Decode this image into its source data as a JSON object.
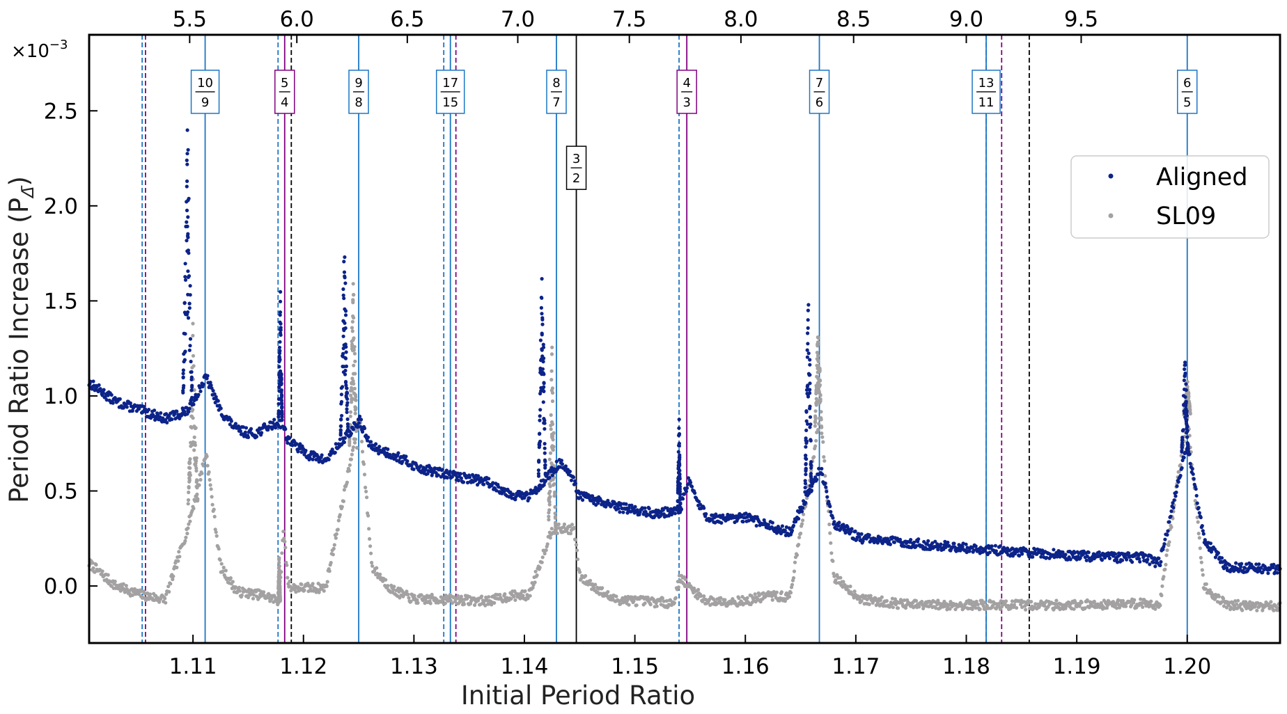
{
  "chart_data": {
    "type": "scatter",
    "xlabel": "Initial Period Ratio",
    "ylabel": "Period Ratio Increase (P",
    "ylabel_sub": "Δ̄",
    "ylabel_close": ")",
    "y_multiplier": "×10",
    "y_multiplier_exp": "−3",
    "xlim": [
      1.1006,
      1.2084
    ],
    "ylim": [
      -0.3,
      2.9
    ],
    "x_ticks": [
      "1.11",
      "1.12",
      "1.13",
      "1.14",
      "1.15",
      "1.16",
      "1.17",
      "1.18",
      "1.19",
      "1.20"
    ],
    "x_tick_values": [
      1.11,
      1.12,
      1.13,
      1.14,
      1.15,
      1.16,
      1.17,
      1.18,
      1.19,
      1.2
    ],
    "y_ticks": [
      "0.0",
      "0.5",
      "1.0",
      "1.5",
      "2.0",
      "2.5"
    ],
    "y_tick_values": [
      0.0,
      0.5,
      1.0,
      1.5,
      2.0,
      2.5
    ],
    "top_axis": {
      "ticks": [
        "5.5",
        "6.0",
        "6.5",
        "7.0",
        "7.5",
        "8.0",
        "8.5",
        "9.0",
        "9.5"
      ],
      "positions_initial_ratio": [
        1.1097,
        1.1194,
        1.1294,
        1.1394,
        1.1495,
        1.1596,
        1.1698,
        1.18,
        1.1904
      ]
    },
    "legend": {
      "position": "upper-right",
      "entries": [
        "Aligned",
        "SL09"
      ]
    },
    "grid": false,
    "colors": {
      "aligned": "#0c2389",
      "sl09": "#a3a1a1",
      "blue_line": "#1b75c4",
      "purple_line": "#800080",
      "black_line": "#000000"
    },
    "resonances": [
      {
        "num": "10",
        "den": "9",
        "value": 1.1111,
        "color": "#1b75c4",
        "label_y": 2.6
      },
      {
        "num": "5",
        "den": "4",
        "value": 1.1183,
        "color": "#800080",
        "label_y": 2.6
      },
      {
        "num": "9",
        "den": "8",
        "value": 1.125,
        "color": "#1b75c4",
        "label_y": 2.6
      },
      {
        "num": "17",
        "den": "15",
        "value": 1.1333,
        "color": "#1b75c4",
        "label_y": 2.6
      },
      {
        "num": "8",
        "den": "7",
        "value": 1.1429,
        "color": "#1b75c4",
        "label_y": 2.6
      },
      {
        "num": "3",
        "den": "2",
        "value": 1.1447,
        "color": "#000000",
        "label_y": 2.2
      },
      {
        "num": "4",
        "den": "3",
        "value": 1.1547,
        "color": "#800080",
        "label_y": 2.6
      },
      {
        "num": "7",
        "den": "6",
        "value": 1.1667,
        "color": "#1b75c4",
        "label_y": 2.6
      },
      {
        "num": "13",
        "den": "11",
        "value": 1.1818,
        "color": "#1b75c4",
        "label_y": 2.6
      },
      {
        "num": "6",
        "den": "5",
        "value": 1.2,
        "color": "#1b75c4",
        "label_y": 2.6
      }
    ],
    "dashed_lines": [
      {
        "value": 1.1054,
        "color": "#1b75c4"
      },
      {
        "value": 1.1057,
        "color": "#800080"
      },
      {
        "value": 1.1177,
        "color": "#1b75c4"
      },
      {
        "value": 1.1189,
        "color": "#000000"
      },
      {
        "value": 1.1327,
        "color": "#1b75c4"
      },
      {
        "value": 1.1338,
        "color": "#800080"
      },
      {
        "value": 1.154,
        "color": "#1b75c4"
      },
      {
        "value": 1.1818,
        "color": "#1b75c4"
      },
      {
        "value": 1.1832,
        "color": "#800080"
      },
      {
        "value": 1.1857,
        "color": "#000000"
      }
    ],
    "series": [
      {
        "name": "Aligned",
        "baseline": [
          [
            1.1006,
            1.07
          ],
          [
            1.103,
            0.97
          ],
          [
            1.1055,
            0.92
          ],
          [
            1.1075,
            0.88
          ],
          [
            1.1095,
            0.92
          ],
          [
            1.1112,
            1.1
          ],
          [
            1.1125,
            0.92
          ],
          [
            1.114,
            0.82
          ],
          [
            1.1155,
            0.8
          ],
          [
            1.1172,
            0.85
          ],
          [
            1.1181,
            0.86
          ],
          [
            1.1185,
            0.78
          ],
          [
            1.119,
            0.75
          ],
          [
            1.1205,
            0.69
          ],
          [
            1.122,
            0.66
          ],
          [
            1.1251,
            0.87
          ],
          [
            1.126,
            0.74
          ],
          [
            1.1285,
            0.68
          ],
          [
            1.1305,
            0.62
          ],
          [
            1.1335,
            0.58
          ],
          [
            1.1365,
            0.55
          ],
          [
            1.139,
            0.48
          ],
          [
            1.1404,
            0.47
          ],
          [
            1.1425,
            0.6
          ],
          [
            1.1432,
            0.65
          ],
          [
            1.1445,
            0.55
          ],
          [
            1.1448,
            0.48
          ],
          [
            1.148,
            0.42
          ],
          [
            1.152,
            0.38
          ],
          [
            1.1541,
            0.4
          ],
          [
            1.1548,
            0.55
          ],
          [
            1.1565,
            0.36
          ],
          [
            1.1585,
            0.35
          ],
          [
            1.16,
            0.36
          ],
          [
            1.162,
            0.32
          ],
          [
            1.164,
            0.28
          ],
          [
            1.1668,
            0.62
          ],
          [
            1.168,
            0.33
          ],
          [
            1.1705,
            0.25
          ],
          [
            1.176,
            0.22
          ],
          [
            1.182,
            0.19
          ],
          [
            1.19,
            0.16
          ],
          [
            1.1935,
            0.15
          ],
          [
            1.196,
            0.15
          ],
          [
            1.1975,
            0.12
          ],
          [
            1.2,
            0.75
          ],
          [
            1.2015,
            0.25
          ],
          [
            1.2035,
            0.1
          ],
          [
            1.2084,
            0.09
          ]
        ],
        "peaks": [
          [
            1.1095,
            2.5,
            0.00045
          ],
          [
            1.1179,
            1.6,
            0.00017
          ],
          [
            1.1237,
            1.9,
            0.00035
          ],
          [
            1.1416,
            1.8,
            0.00033
          ],
          [
            1.154,
            1.0,
            0.00013
          ],
          [
            1.1657,
            1.7,
            0.0003
          ],
          [
            1.1998,
            1.25,
            0.0003
          ]
        ]
      },
      {
        "name": "SL09",
        "baseline": [
          [
            1.1006,
            0.12
          ],
          [
            1.103,
            0.0
          ],
          [
            1.1055,
            -0.05
          ],
          [
            1.1075,
            -0.07
          ],
          [
            1.1095,
            0.3
          ],
          [
            1.1112,
            0.7
          ],
          [
            1.1125,
            0.1
          ],
          [
            1.114,
            -0.03
          ],
          [
            1.1165,
            -0.05
          ],
          [
            1.1178,
            -0.08
          ],
          [
            1.1182,
            0.3
          ],
          [
            1.1186,
            0.02
          ],
          [
            1.119,
            -0.01
          ],
          [
            1.1205,
            -0.01
          ],
          [
            1.122,
            -0.01
          ],
          [
            1.1251,
            0.9
          ],
          [
            1.1262,
            0.1
          ],
          [
            1.128,
            -0.02
          ],
          [
            1.13,
            -0.07
          ],
          [
            1.1335,
            -0.07
          ],
          [
            1.1365,
            -0.08
          ],
          [
            1.139,
            -0.05
          ],
          [
            1.1404,
            -0.05
          ],
          [
            1.1425,
            0.3
          ],
          [
            1.1445,
            0.3
          ],
          [
            1.145,
            0.05
          ],
          [
            1.148,
            -0.07
          ],
          [
            1.1535,
            -0.09
          ],
          [
            1.1541,
            0.05
          ],
          [
            1.1548,
            0.0
          ],
          [
            1.1565,
            -0.08
          ],
          [
            1.16,
            -0.08
          ],
          [
            1.162,
            -0.05
          ],
          [
            1.164,
            -0.06
          ],
          [
            1.1668,
            0.9
          ],
          [
            1.168,
            0.05
          ],
          [
            1.1705,
            -0.07
          ],
          [
            1.175,
            -0.1
          ],
          [
            1.182,
            -0.1
          ],
          [
            1.19,
            -0.1
          ],
          [
            1.196,
            -0.09
          ],
          [
            1.1975,
            -0.1
          ],
          [
            1.2,
            0.9
          ],
          [
            1.2015,
            0.0
          ],
          [
            1.2035,
            -0.1
          ],
          [
            1.2084,
            -0.11
          ]
        ],
        "peaks": [
          [
            1.11,
            1.4,
            0.00045
          ],
          [
            1.1178,
            0.2,
            0.0001
          ],
          [
            1.1245,
            1.65,
            0.00035
          ],
          [
            1.1425,
            1.3,
            0.00033
          ],
          [
            1.1666,
            1.45,
            0.0003
          ],
          [
            1.2,
            1.1,
            0.0003
          ]
        ]
      }
    ]
  }
}
